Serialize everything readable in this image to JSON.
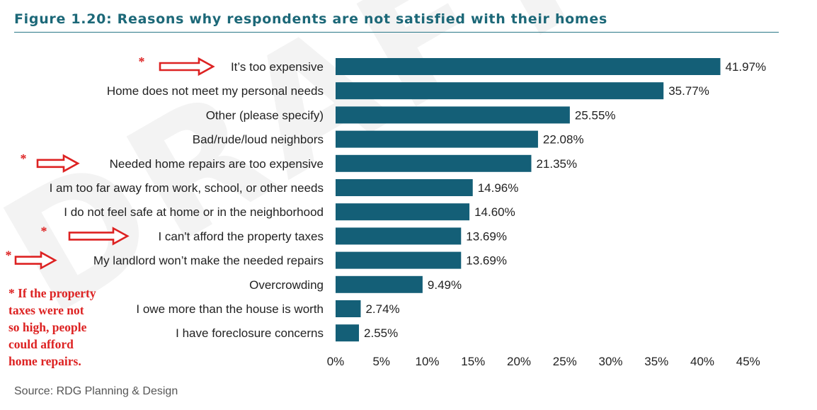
{
  "figure": {
    "title": "Figure 1.20: Reasons why respondents are not satisfied with their homes",
    "source": "Source: RDG Planning & Design"
  },
  "colors": {
    "bar": "#145f77",
    "title": "#1c6878",
    "annotation": "#dd2222"
  },
  "chart_data": {
    "type": "bar",
    "orientation": "horizontal",
    "categories": [
      "It’s too expensive",
      "Home does not meet my personal needs",
      "Other (please specify)",
      "Bad/rude/loud neighbors",
      "Needed home repairs are too expensive",
      "I am too far away from work, school, or other needs",
      "I do not feel safe at home or in the neighborhood",
      "I can't afford the property taxes",
      "My landlord won’t make the needed repairs",
      "Overcrowding",
      "I owe more than the house is worth",
      "I have foreclosure concerns"
    ],
    "values": [
      41.97,
      35.77,
      25.55,
      22.08,
      21.35,
      14.96,
      14.6,
      13.69,
      13.69,
      9.49,
      2.74,
      2.55
    ],
    "value_labels": [
      "41.97%",
      "35.77%",
      "25.55%",
      "22.08%",
      "21.35%",
      "14.96%",
      "14.60%",
      "13.69%",
      "13.69%",
      "9.49%",
      "2.74%",
      "2.55%"
    ],
    "xlim": [
      0,
      45
    ],
    "xticks": [
      "0%",
      "5%",
      "10%",
      "15%",
      "20%",
      "25%",
      "30%",
      "35%",
      "40%",
      "45%"
    ],
    "grid": false
  },
  "annotations": {
    "marked_categories": [
      0,
      4,
      7,
      8
    ],
    "marker": "*",
    "arrow_icon": "right-arrow-icon",
    "note": "* If the property\ntaxes were not\nso high, people\ncould afford\nhome repairs."
  }
}
